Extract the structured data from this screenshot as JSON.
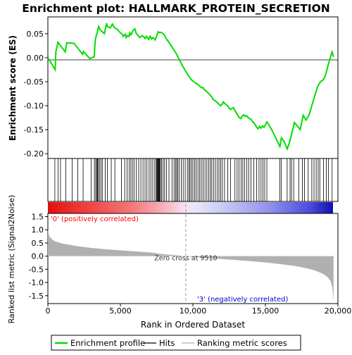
{
  "chart_data": {
    "type": "line",
    "title": "Enrichment plot: HALLMARK_PROTEIN_SECRETION",
    "xlabel": "Rank in Ordered Dataset",
    "xlim": [
      0,
      20000
    ],
    "x_ticks": [
      0,
      5000,
      10000,
      15000,
      20000
    ],
    "x_tick_labels": [
      "0",
      "5,000",
      "10,000",
      "15,000",
      "20,000"
    ],
    "es_panel": {
      "ylabel": "Enrichment score (ES)",
      "ylim": [
        -0.21,
        0.085
      ],
      "y_ticks": [
        0.05,
        0.0,
        -0.05,
        -0.1,
        -0.15,
        -0.2
      ],
      "y_tick_labels": [
        "0.05",
        "0.00",
        "-0.05",
        "-0.10",
        "-0.15",
        "-0.20"
      ],
      "color": "#00dd00",
      "series": [
        {
          "name": "Enrichment profile",
          "x": [
            0,
            500,
            550,
            700,
            1200,
            1300,
            1800,
            2400,
            2450,
            2900,
            3200,
            3250,
            3300,
            3400,
            3500,
            3600,
            3900,
            4050,
            4100,
            4300,
            4450,
            4600,
            4750,
            5000,
            5150,
            5200,
            5350,
            5400,
            5500,
            5600,
            5650,
            5750,
            5850,
            6000,
            6100,
            6200,
            6350,
            6500,
            6600,
            6700,
            6800,
            6950,
            7050,
            7150,
            7250,
            7400,
            7500,
            7550,
            7600,
            7700,
            7800,
            7950,
            8050,
            8150,
            8300,
            8500,
            8700,
            8900,
            9100,
            9300,
            9500,
            9700,
            9900,
            10100,
            10300,
            10500,
            10600,
            10700,
            10800,
            10900,
            11000,
            11100,
            11200,
            11300,
            11400,
            11550,
            11700,
            11800,
            11900,
            12000,
            12100,
            12250,
            12400,
            12500,
            12600,
            12700,
            12800,
            12900,
            13000,
            13100,
            13200,
            13300,
            13400,
            13500,
            13600,
            13700,
            13800,
            13900,
            14000,
            14100,
            14200,
            14300,
            14400,
            14500,
            14600,
            14700,
            14800,
            14900,
            15000,
            15100,
            15200,
            15400,
            15600,
            15800,
            16000,
            16100,
            16300,
            16500,
            16600,
            16700,
            16800,
            16900,
            17000,
            17200,
            17400,
            17500,
            17600,
            17800,
            18000,
            18100,
            18200,
            18300,
            18400,
            18500,
            18600,
            18700,
            18800,
            18900,
            19000,
            19100,
            19200,
            19300,
            19400,
            19500,
            19600,
            19700
          ],
          "y": [
            0.0,
            -0.025,
            0.012,
            0.032,
            0.012,
            0.031,
            0.03,
            0.007,
            0.013,
            -0.002,
            0.002,
            0.03,
            0.042,
            0.052,
            0.065,
            0.058,
            0.05,
            0.072,
            0.065,
            0.062,
            0.07,
            0.062,
            0.06,
            0.052,
            0.048,
            0.044,
            0.049,
            0.042,
            0.046,
            0.044,
            0.052,
            0.048,
            0.056,
            0.06,
            0.05,
            0.047,
            0.042,
            0.046,
            0.044,
            0.04,
            0.045,
            0.038,
            0.045,
            0.039,
            0.042,
            0.037,
            0.045,
            0.05,
            0.054,
            0.052,
            0.053,
            0.05,
            0.046,
            0.04,
            0.034,
            0.025,
            0.016,
            0.006,
            -0.006,
            -0.018,
            -0.028,
            -0.038,
            -0.046,
            -0.051,
            -0.055,
            -0.06,
            -0.063,
            -0.062,
            -0.067,
            -0.069,
            -0.072,
            -0.075,
            -0.078,
            -0.082,
            -0.087,
            -0.09,
            -0.094,
            -0.097,
            -0.1,
            -0.098,
            -0.092,
            -0.097,
            -0.1,
            -0.105,
            -0.108,
            -0.106,
            -0.104,
            -0.11,
            -0.115,
            -0.12,
            -0.125,
            -0.127,
            -0.122,
            -0.119,
            -0.122,
            -0.121,
            -0.124,
            -0.127,
            -0.128,
            -0.133,
            -0.135,
            -0.14,
            -0.145,
            -0.148,
            -0.143,
            -0.147,
            -0.142,
            -0.145,
            -0.14,
            -0.134,
            -0.138,
            -0.148,
            -0.16,
            -0.173,
            -0.185,
            -0.167,
            -0.175,
            -0.19,
            -0.182,
            -0.172,
            -0.16,
            -0.148,
            -0.135,
            -0.142,
            -0.15,
            -0.135,
            -0.12,
            -0.13,
            -0.12,
            -0.11,
            -0.1,
            -0.09,
            -0.08,
            -0.07,
            -0.06,
            -0.055,
            -0.05,
            -0.048,
            -0.045,
            -0.04,
            -0.03,
            -0.018,
            -0.008,
            0.003,
            0.012,
            0.002
          ]
        }
      ]
    },
    "hits_panel": {
      "hit_positions": [
        480,
        700,
        870,
        1230,
        1680,
        2060,
        2430,
        2980,
        3210,
        3300,
        3370,
        3420,
        3480,
        3560,
        3660,
        3770,
        3950,
        4100,
        4370,
        4620,
        5070,
        5300,
        5460,
        5600,
        5720,
        5830,
        5950,
        6100,
        6260,
        6410,
        6560,
        6700,
        6830,
        6980,
        7100,
        7230,
        7370,
        7470,
        7520,
        7560,
        7590,
        7630,
        7670,
        7710,
        7760,
        7840,
        7950,
        8050,
        8180,
        8350,
        8560,
        8700,
        8800,
        8880,
        8960,
        9060,
        9200,
        9330,
        9470,
        9620,
        9720,
        9800,
        9900,
        10000,
        10120,
        10230,
        10350,
        10470,
        10580,
        10700,
        10830,
        10960,
        11080,
        11200,
        11300,
        11420,
        11550,
        11690,
        11800,
        11920,
        12030,
        12180,
        12400,
        12600,
        12900,
        13050,
        13180,
        13320,
        13440,
        13560,
        13720,
        13850,
        14000,
        14200,
        14400,
        14560,
        14700,
        14830,
        14950,
        15100,
        16000,
        16100,
        16500,
        16700,
        16800,
        16950,
        17300,
        17550,
        17700,
        17950,
        18200,
        18350,
        18500,
        18640,
        18750,
        19000,
        19200,
        19350,
        19600
      ]
    },
    "rank_panel": {
      "ylabel": "Ranked list metric (Signal2Noise)",
      "ylim": [
        -1.8,
        1.62
      ],
      "y_ticks": [
        1.5,
        1.0,
        0.5,
        0.0,
        -0.5,
        -1.0,
        -1.5
      ],
      "y_tick_labels": [
        "1.5",
        "1.0",
        "0.5",
        "0.0",
        "-0.5",
        "-1.0",
        "-1.5"
      ],
      "fill_color": "#b0b0b0",
      "x": [
        0,
        100,
        300,
        500,
        1000,
        2000,
        3000,
        4000,
        5000,
        6000,
        7000,
        7400,
        7500,
        8000,
        9000,
        9510,
        10000,
        11000,
        12000,
        13000,
        14000,
        15000,
        16000,
        17000,
        17500,
        18000,
        18500,
        19000,
        19300,
        19500,
        19600,
        19650,
        19700
      ],
      "y": [
        1.0,
        0.75,
        0.63,
        0.56,
        0.48,
        0.38,
        0.31,
        0.26,
        0.22,
        0.18,
        0.14,
        0.12,
        0.1,
        0.07,
        0.03,
        0.0,
        -0.03,
        -0.07,
        -0.11,
        -0.15,
        -0.19,
        -0.24,
        -0.3,
        -0.37,
        -0.42,
        -0.48,
        -0.56,
        -0.68,
        -0.8,
        -0.95,
        -1.15,
        -1.4,
        -1.72
      ],
      "zero_cross_rank": 9510,
      "zero_cross_label": "Zero cross at 9510",
      "pos_label": "'0' (positively correlated)",
      "neg_label": "'3' (negatively correlated)",
      "pos_label_color": "#ff0000",
      "neg_label_color": "#0000cc"
    },
    "legend": {
      "placement": "bottom",
      "items": [
        {
          "label": "Enrichment profile",
          "color": "#00dd00"
        },
        {
          "label": "Hits",
          "color": "#000000"
        },
        {
          "label": "Ranking metric scores",
          "color": "#b0b0b0"
        }
      ]
    }
  }
}
